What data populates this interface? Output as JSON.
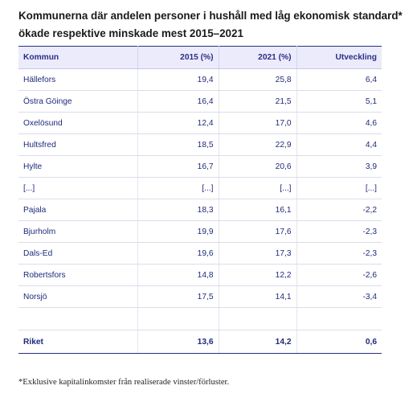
{
  "title": "Kommunerna där andelen personer i hushåll med låg ekonomisk standard* ökade respektive minskade mest 2015–2021",
  "table": {
    "headers": [
      "Kommun",
      "2015 (%)",
      "2021 (%)",
      "Utveckling"
    ],
    "rows": [
      [
        "Hällefors",
        "19,4",
        "25,8",
        "6,4"
      ],
      [
        "Östra Göinge",
        "16,4",
        "21,5",
        "5,1"
      ],
      [
        "Oxelösund",
        "12,4",
        "17,0",
        "4,6"
      ],
      [
        "Hultsfred",
        "18,5",
        "22,9",
        "4,4"
      ],
      [
        "Hylte",
        "16,7",
        "20,6",
        "3,9"
      ],
      [
        "[...]",
        "[...]",
        "[...]",
        "[...]"
      ],
      [
        "Pajala",
        "18,3",
        "16,1",
        "-2,2"
      ],
      [
        "Bjurholm",
        "19,9",
        "17,6",
        "-2,3"
      ],
      [
        "Dals-Ed",
        "19,6",
        "17,3",
        "-2,3"
      ],
      [
        "Robertsfors",
        "14,8",
        "12,2",
        "-2,6"
      ],
      [
        "Norsjö",
        "17,5",
        "14,1",
        "-3,4"
      ]
    ],
    "total": [
      "Riket",
      "13,6",
      "14,2",
      "0,6"
    ]
  },
  "footnote": "*Exklusive kapitalinkomster från realiserade vinster/förluster.",
  "colors": {
    "header_bg": "#ecebfb",
    "header_text": "#2a2f86",
    "cell_text": "#1f2a7a",
    "rule": "#2a2f86"
  }
}
